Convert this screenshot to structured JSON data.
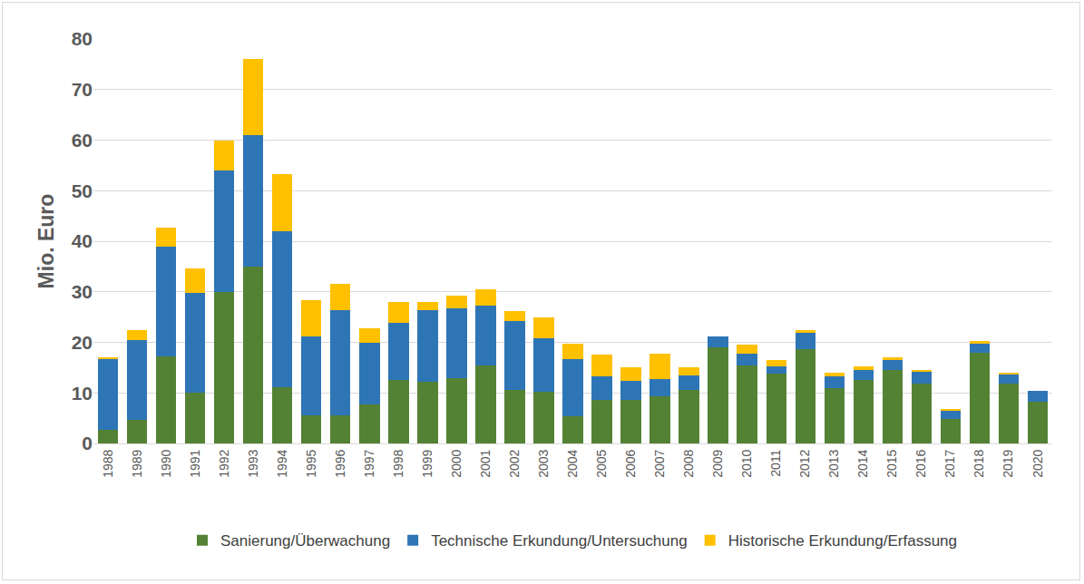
{
  "chart_data": {
    "type": "bar",
    "stacked": true,
    "y_label": "Mio. Euro",
    "categories": [
      "1988",
      "1989",
      "1990",
      "1991",
      "1992",
      "1993",
      "1994",
      "1995",
      "1996",
      "1997",
      "1998",
      "1999",
      "2000",
      "2001",
      "2002",
      "2003",
      "2004",
      "2005",
      "2006",
      "2007",
      "2008",
      "2009",
      "2010",
      "2011",
      "2012",
      "2013",
      "2014",
      "2015",
      "2016",
      "2017",
      "2018",
      "2019",
      "2020"
    ],
    "series": [
      {
        "name": "Sanierung/Überwachung",
        "color": "#548235",
        "values": [
          2.7,
          4.7,
          17.2,
          10,
          30,
          35,
          11.2,
          5.5,
          5.6,
          7.8,
          12.5,
          12.2,
          13,
          15.5,
          10.5,
          10.2,
          5.3,
          8.7,
          8.7,
          9.3,
          10.5,
          19,
          15.5,
          13.8,
          18.7,
          11,
          12.6,
          14.5,
          11.8,
          4.8,
          18,
          11.8,
          8.2
        ]
      },
      {
        "name": "Technische Erkundung/Untersuchung",
        "color": "#2e75b6",
        "values": [
          14.1,
          15.8,
          21.8,
          19.7,
          24,
          26,
          30.8,
          15.7,
          20.7,
          12.2,
          11.3,
          14.1,
          13.8,
          11.7,
          13.8,
          10.6,
          11.3,
          4.5,
          3.6,
          3.5,
          3,
          2.2,
          2.2,
          1.4,
          3.1,
          2.2,
          2,
          2,
          2.3,
          1.7,
          1.7,
          1.9,
          2.2
        ]
      },
      {
        "name": "Historische Erkundung/Erfassung",
        "color": "#ffc000",
        "values": [
          0.3,
          1.9,
          3.7,
          4.9,
          6,
          15,
          11.2,
          7.1,
          5.2,
          2.8,
          4.2,
          1.7,
          2.5,
          3.3,
          1.9,
          4.1,
          3.1,
          4.3,
          2.7,
          4.9,
          1.5,
          0,
          1.9,
          1.3,
          0.6,
          0.8,
          0.7,
          0.6,
          0.4,
          0.4,
          0.6,
          0.3,
          0
        ]
      }
    ],
    "ylim": [
      0,
      80
    ],
    "yticks": [
      0,
      10,
      20,
      30,
      40,
      50,
      60,
      70,
      80
    ],
    "grid": true,
    "legend": "bottom"
  }
}
